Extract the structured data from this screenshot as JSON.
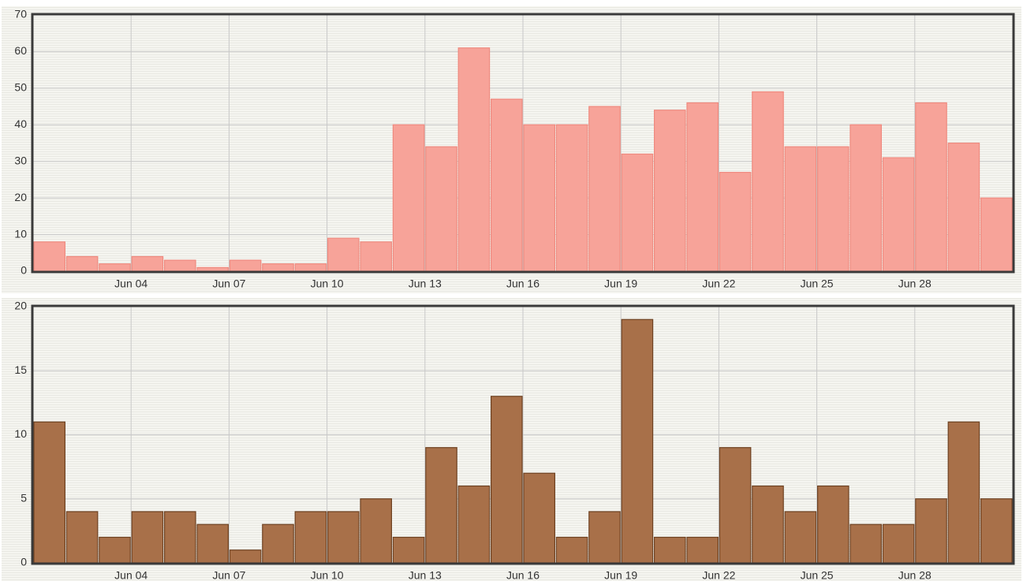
{
  "chart_data": [
    {
      "type": "bar",
      "categories": [
        null,
        null,
        null,
        "Jun 04",
        null,
        null,
        "Jun 07",
        null,
        null,
        "Jun 10",
        null,
        null,
        "Jun 13",
        null,
        null,
        "Jun 16",
        null,
        null,
        "Jun 19",
        null,
        null,
        "Jun 22",
        null,
        null,
        "Jun 25",
        null,
        null,
        "Jun 28",
        null,
        null
      ],
      "values": [
        8,
        4,
        2,
        4,
        3,
        1,
        3,
        2,
        2,
        9,
        8,
        40,
        34,
        61,
        47,
        40,
        40,
        45,
        32,
        44,
        46,
        27,
        49,
        34,
        34,
        40,
        31,
        46,
        35,
        20
      ],
      "color": "#f7a399",
      "stroke": "#ef8a7f",
      "ylim": [
        0,
        70
      ],
      "yticks": [
        0,
        10,
        20,
        30,
        40,
        50,
        60,
        70
      ],
      "grid": true
    },
    {
      "type": "bar",
      "categories": [
        null,
        null,
        null,
        "Jun 04",
        null,
        null,
        "Jun 07",
        null,
        null,
        "Jun 10",
        null,
        null,
        "Jun 13",
        null,
        null,
        "Jun 16",
        null,
        null,
        "Jun 19",
        null,
        null,
        "Jun 22",
        null,
        null,
        "Jun 25",
        null,
        null,
        "Jun 28",
        null,
        null
      ],
      "values": [
        11,
        4,
        2,
        4,
        4,
        3,
        1,
        3,
        4,
        4,
        5,
        2,
        9,
        6,
        13,
        7,
        2,
        4,
        19,
        2,
        2,
        9,
        6,
        4,
        6,
        3,
        3,
        5,
        11,
        5
      ],
      "color": "#a87049",
      "stroke": "#6e4222",
      "ylim": [
        0,
        20
      ],
      "yticks": [
        0,
        5,
        10,
        15,
        20
      ],
      "grid": true
    }
  ]
}
